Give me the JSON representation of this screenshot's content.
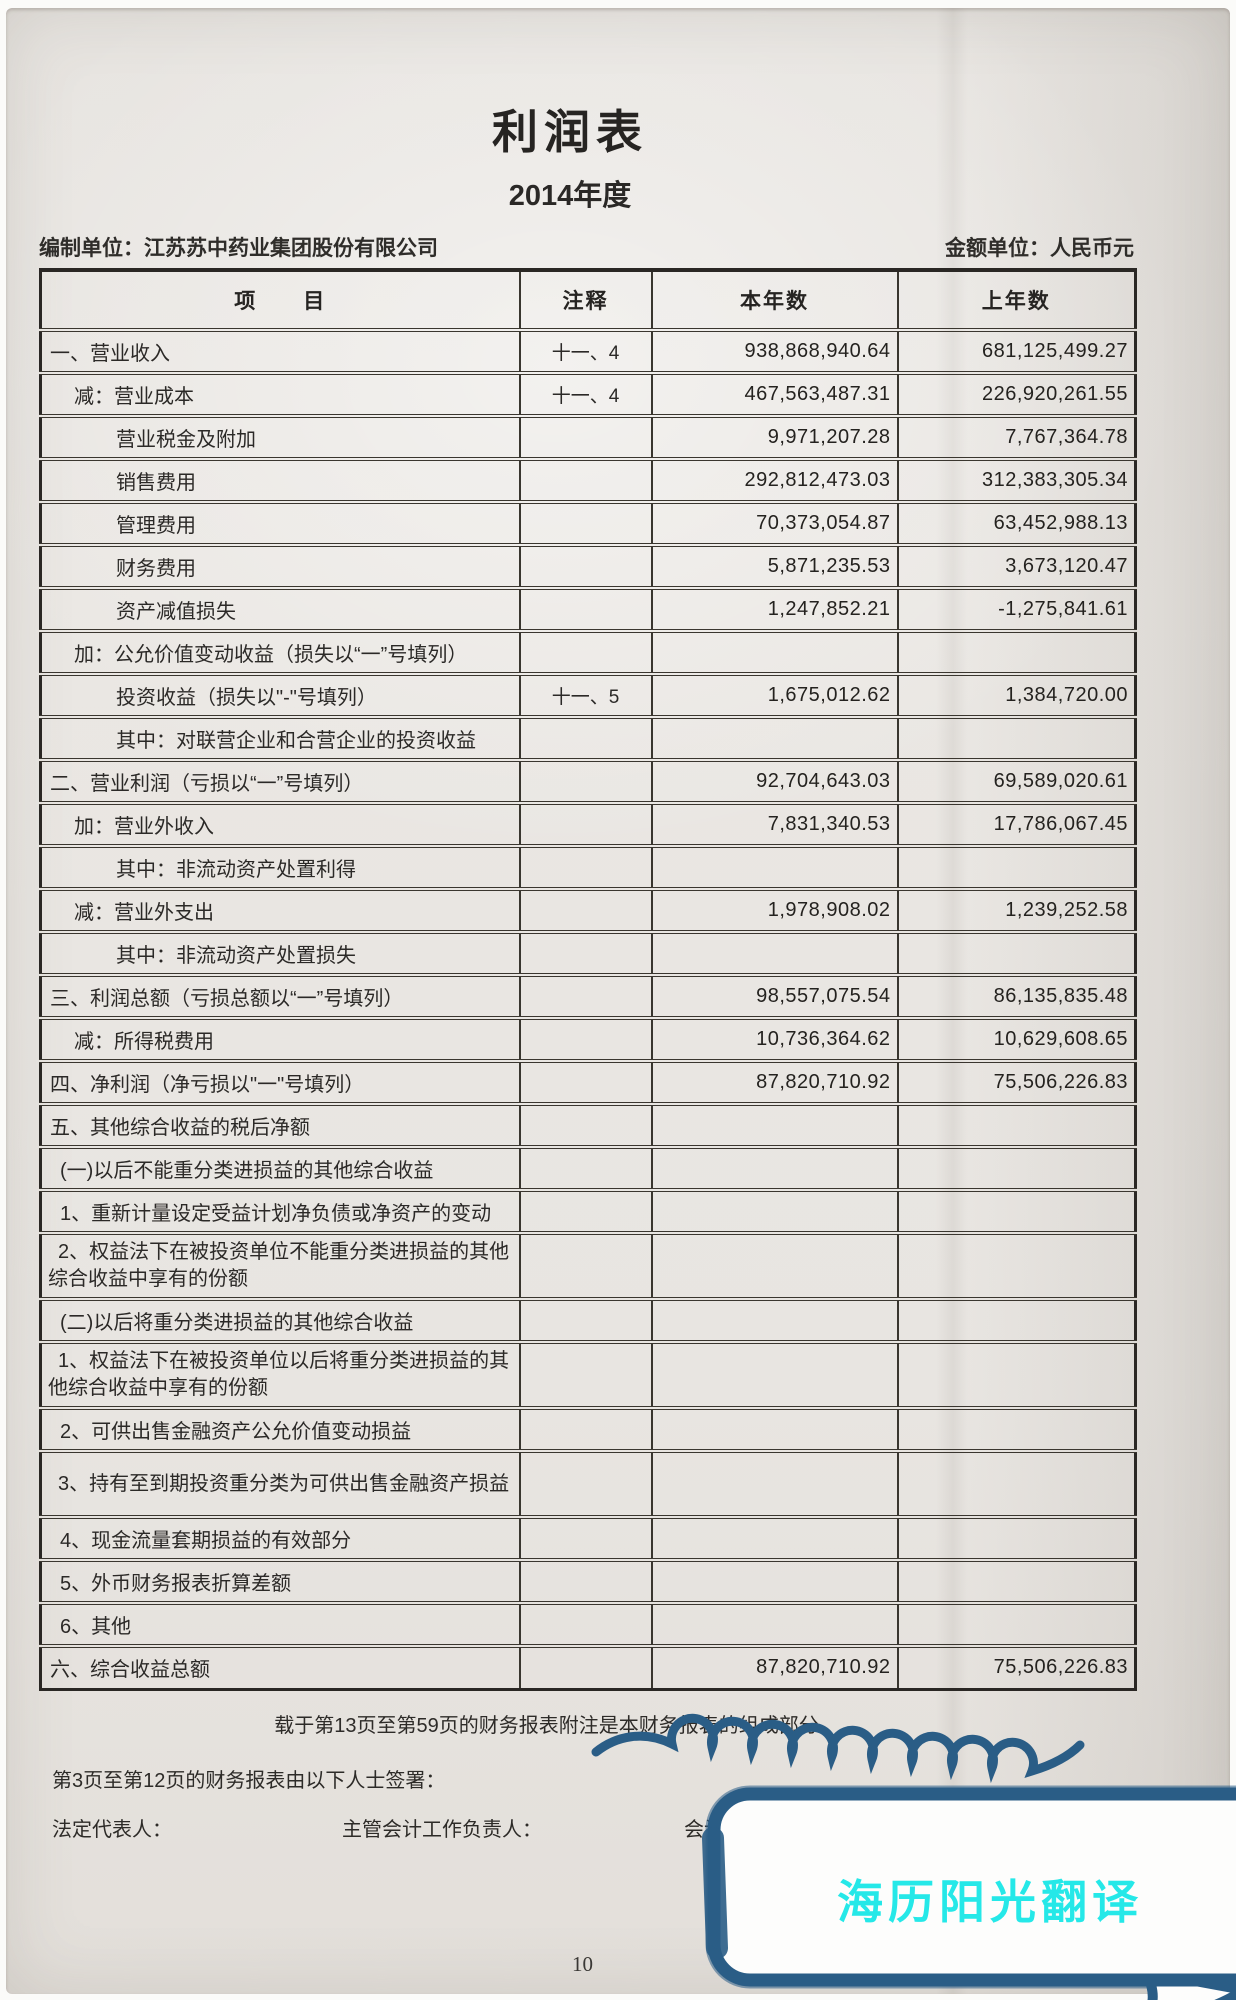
{
  "header": {
    "title": "利润表",
    "period": "2014年度",
    "prepared_by": "编制单位：江苏苏中药业集团股份有限公司",
    "currency_unit": "金额单位：人民币元"
  },
  "table": {
    "columns": [
      "项　　目",
      "注释",
      "本年数",
      "上年数"
    ],
    "rows": [
      {
        "item": "一、营业收入",
        "note": "十一、4",
        "current": "938,868,940.64",
        "prior": "681,125,499.27",
        "indent": 0
      },
      {
        "item": "减：营业成本",
        "note": "十一、4",
        "current": "467,563,487.31",
        "prior": "226,920,261.55",
        "indent": 2
      },
      {
        "item": "营业税金及附加",
        "note": "",
        "current": "9,971,207.28",
        "prior": "7,767,364.78",
        "indent": 3
      },
      {
        "item": "销售费用",
        "note": "",
        "current": "292,812,473.03",
        "prior": "312,383,305.34",
        "indent": 3
      },
      {
        "item": "管理费用",
        "note": "",
        "current": "70,373,054.87",
        "prior": "63,452,988.13",
        "indent": 3
      },
      {
        "item": "财务费用",
        "note": "",
        "current": "5,871,235.53",
        "prior": "3,673,120.47",
        "indent": 3
      },
      {
        "item": "资产减值损失",
        "note": "",
        "current": "1,247,852.21",
        "prior": "-1,275,841.61",
        "indent": 3
      },
      {
        "item": "加：公允价值变动收益（损失以“一”号填列）",
        "note": "",
        "current": "",
        "prior": "",
        "indent": 2
      },
      {
        "item": "投资收益（损失以\"-\"号填列）",
        "note": "十一、5",
        "current": "1,675,012.62",
        "prior": "1,384,720.00",
        "indent": 3
      },
      {
        "item": "其中：对联营企业和合营企业的投资收益",
        "note": "",
        "current": "",
        "prior": "",
        "indent": 3
      },
      {
        "item": "二、营业利润（亏损以“一”号填列）",
        "note": "",
        "current": "92,704,643.03",
        "prior": "69,589,020.61",
        "indent": 0
      },
      {
        "item": "加：营业外收入",
        "note": "",
        "current": "7,831,340.53",
        "prior": "17,786,067.45",
        "indent": 2
      },
      {
        "item": "其中：非流动资产处置利得",
        "note": "",
        "current": "",
        "prior": "",
        "indent": 3
      },
      {
        "item": "减：营业外支出",
        "note": "",
        "current": "1,978,908.02",
        "prior": "1,239,252.58",
        "indent": 2
      },
      {
        "item": "其中：非流动资产处置损失",
        "note": "",
        "current": "",
        "prior": "",
        "indent": 3
      },
      {
        "item": "三、利润总额（亏损总额以“一”号填列）",
        "note": "",
        "current": "98,557,075.54",
        "prior": "86,135,835.48",
        "indent": 0
      },
      {
        "item": "减：所得税费用",
        "note": "",
        "current": "10,736,364.62",
        "prior": "10,629,608.65",
        "indent": 2
      },
      {
        "item": "四、净利润（净亏损以\"一\"号填列）",
        "note": "",
        "current": "87,820,710.92",
        "prior": "75,506,226.83",
        "indent": 0
      },
      {
        "item": "五、其他综合收益的税后净额",
        "note": "",
        "current": "",
        "prior": "",
        "indent": 0
      },
      {
        "item": "(一)以后不能重分类进损益的其他综合收益",
        "note": "",
        "current": "",
        "prior": "",
        "indent": 1
      },
      {
        "item": "1、重新计量设定受益计划净负债或净资产的变动",
        "note": "",
        "current": "",
        "prior": "",
        "indent": 1
      },
      {
        "item": "2、权益法下在被投资单位不能重分类进损益的其他综合收益中享有的份额",
        "note": "",
        "current": "",
        "prior": "",
        "indent": 1,
        "wrap": true
      },
      {
        "item": "(二)以后将重分类进损益的其他综合收益",
        "note": "",
        "current": "",
        "prior": "",
        "indent": 1
      },
      {
        "item": "1、权益法下在被投资单位以后将重分类进损益的其他综合收益中享有的份额",
        "note": "",
        "current": "",
        "prior": "",
        "indent": 1,
        "wrap": true
      },
      {
        "item": "2、可供出售金融资产公允价值变动损益",
        "note": "",
        "current": "",
        "prior": "",
        "indent": 1
      },
      {
        "item": "3、持有至到期投资重分类为可供出售金融资产损益",
        "note": "",
        "current": "",
        "prior": "",
        "indent": 1,
        "wrap": true
      },
      {
        "item": "4、现金流量套期损益的有效部分",
        "note": "",
        "current": "",
        "prior": "",
        "indent": 1
      },
      {
        "item": "5、外币财务报表折算差额",
        "note": "",
        "current": "",
        "prior": "",
        "indent": 1
      },
      {
        "item": "6、其他",
        "note": "",
        "current": "",
        "prior": "",
        "indent": 1
      },
      {
        "item": "六、综合收益总额",
        "note": "",
        "current": "87,820,710.92",
        "prior": "75,506,226.83",
        "indent": 0
      }
    ]
  },
  "footer": {
    "attachment_note": "载于第13页至第59页的财务报表附注是本财务报表的组成部分",
    "signing_note": "第3页至第12页的财务报表由以下人士签署：",
    "signer_legal": "法定代表人：",
    "signer_chief_accountant": "主管会计工作负责人：",
    "signer_accounting_dept": "会计机构负责人：",
    "page_number": "10"
  },
  "watermark": {
    "text": "海历阳光翻译",
    "bubble_color": "#2a5d86",
    "text_color": "#25e8e8"
  }
}
